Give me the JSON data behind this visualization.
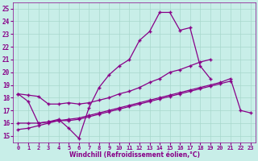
{
  "background_color": "#c8eee8",
  "grid_color": "#a8d8cc",
  "line_color": "#880088",
  "tick_color": "#880088",
  "xlabel": "Windchill (Refroidissement éolien,°C)",
  "x_ticks": [
    0,
    1,
    2,
    3,
    4,
    5,
    6,
    7,
    8,
    9,
    10,
    11,
    12,
    13,
    14,
    15,
    16,
    17,
    18,
    19,
    20,
    21,
    22,
    23
  ],
  "y_ticks": [
    15,
    16,
    17,
    18,
    19,
    20,
    21,
    22,
    23,
    24,
    25
  ],
  "ylim": [
    14.5,
    25.5
  ],
  "xlim": [
    -0.5,
    23.5
  ],
  "series1_x": [
    0,
    1,
    2,
    3,
    4,
    5,
    6,
    7,
    8,
    9,
    10,
    11,
    12,
    13,
    14,
    15,
    16,
    17,
    18,
    19
  ],
  "series1_y": [
    18.3,
    17.7,
    16.0,
    16.1,
    16.3,
    15.6,
    14.8,
    17.2,
    18.8,
    19.8,
    20.5,
    21.0,
    22.5,
    23.2,
    24.7,
    24.7,
    23.3,
    23.5,
    20.5,
    19.5
  ],
  "series2_x": [
    0,
    1,
    2,
    3,
    4,
    5,
    6,
    7,
    8,
    9,
    10,
    11,
    12,
    13,
    14,
    15,
    16,
    17,
    18,
    19,
    20,
    21
  ],
  "series2_y": [
    16.0,
    16.0,
    16.0,
    16.1,
    16.2,
    16.2,
    16.3,
    16.5,
    16.7,
    16.9,
    17.1,
    17.3,
    17.5,
    17.7,
    17.9,
    18.1,
    18.3,
    18.5,
    18.7,
    18.9,
    19.1,
    19.3
  ],
  "series3_x": [
    0,
    1,
    2,
    3,
    4,
    5,
    6,
    7,
    8,
    9,
    10,
    11,
    12,
    13,
    14,
    15,
    16,
    17,
    18,
    19,
    20,
    21,
    22,
    23
  ],
  "series3_y": [
    15.5,
    15.6,
    15.8,
    16.0,
    16.2,
    16.3,
    16.4,
    16.6,
    16.8,
    17.0,
    17.2,
    17.4,
    17.6,
    17.8,
    18.0,
    18.2,
    18.4,
    18.6,
    18.8,
    19.0,
    19.2,
    19.5,
    17.0,
    16.8
  ],
  "series4_x": [
    0,
    1,
    2,
    3,
    4,
    5,
    6,
    7,
    8,
    9,
    10,
    11,
    12,
    13,
    14,
    15,
    16,
    17,
    18,
    19
  ],
  "series4_y": [
    18.3,
    18.2,
    18.1,
    17.5,
    17.5,
    17.6,
    17.5,
    17.6,
    17.8,
    18.0,
    18.3,
    18.5,
    18.8,
    19.2,
    19.5,
    20.0,
    20.2,
    20.5,
    20.8,
    21.0
  ]
}
